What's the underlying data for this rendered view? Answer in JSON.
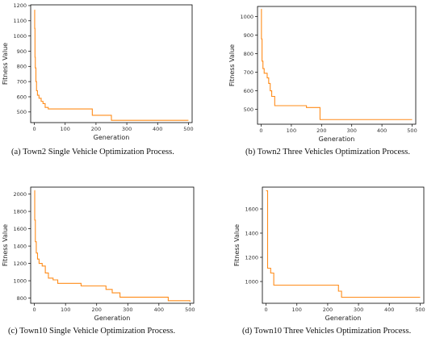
{
  "captions": [
    "(a)  Town2 Single Vehicle Optimization Process.",
    "(b)  Town2 Three Vehicles Optimization Process.",
    "(c)  Town10 Single Vehicle Optimization Process.",
    "(d)  Town10 Three Vehicles Optimization Process."
  ],
  "colors": {
    "line": "#ff8c1a",
    "axis": "#000000"
  },
  "chart_data": [
    {
      "type": "line",
      "title": "",
      "xlabel": "Generation",
      "ylabel": "Fitness Value",
      "xlim": [
        -12,
        512
      ],
      "ylim": [
        430,
        1205
      ],
      "xticks": [
        0,
        100,
        200,
        300,
        400,
        500
      ],
      "yticks": [
        500,
        600,
        700,
        800,
        900,
        1000,
        1100,
        1200
      ],
      "series": [
        {
          "steps": [
            [
              0,
              1170
            ],
            [
              1,
              1050
            ],
            [
              2,
              860
            ],
            [
              3,
              790
            ],
            [
              5,
              700
            ],
            [
              7,
              640
            ],
            [
              10,
              610
            ],
            [
              15,
              590
            ],
            [
              22,
              570
            ],
            [
              28,
              555
            ],
            [
              35,
              530
            ],
            [
              45,
              520
            ],
            [
              188,
              478
            ],
            [
              250,
              445
            ],
            [
              500,
              445
            ]
          ]
        }
      ]
    },
    {
      "type": "line",
      "title": "",
      "xlabel": "Generation",
      "ylabel": "Fitness Value",
      "xlim": [
        -12,
        512
      ],
      "ylim": [
        420,
        1055
      ],
      "xticks": [
        0,
        100,
        200,
        300,
        400,
        500
      ],
      "yticks": [
        500,
        600,
        700,
        800,
        900,
        1000
      ],
      "series": [
        {
          "steps": [
            [
              0,
              1040
            ],
            [
              1,
              880
            ],
            [
              3,
              760
            ],
            [
              6,
              720
            ],
            [
              10,
              695
            ],
            [
              20,
              670
            ],
            [
              25,
              640
            ],
            [
              30,
              600
            ],
            [
              35,
              570
            ],
            [
              45,
              520
            ],
            [
              150,
              510
            ],
            [
              195,
              445
            ],
            [
              500,
              445
            ]
          ]
        }
      ]
    },
    {
      "type": "line",
      "title": "",
      "xlabel": "Generation",
      "ylabel": "Fitness Value",
      "xlim": [
        -12,
        512
      ],
      "ylim": [
        740,
        2080
      ],
      "xticks": [
        0,
        100,
        200,
        300,
        400,
        500
      ],
      "yticks": [
        800,
        1000,
        1200,
        1400,
        1600,
        1800,
        2000
      ],
      "series": [
        {
          "steps": [
            [
              0,
              2040
            ],
            [
              1,
              1700
            ],
            [
              3,
              1450
            ],
            [
              6,
              1320
            ],
            [
              10,
              1250
            ],
            [
              15,
              1200
            ],
            [
              25,
              1170
            ],
            [
              35,
              1090
            ],
            [
              45,
              1030
            ],
            [
              60,
              1010
            ],
            [
              75,
              970
            ],
            [
              150,
              940
            ],
            [
              230,
              900
            ],
            [
              250,
              860
            ],
            [
              275,
              810
            ],
            [
              430,
              770
            ],
            [
              500,
              760
            ]
          ]
        }
      ]
    },
    {
      "type": "line",
      "title": "",
      "xlabel": "Generation",
      "ylabel": "Fitness Value",
      "xlim": [
        -12,
        512
      ],
      "ylim": [
        820,
        1780
      ],
      "xticks": [
        0,
        100,
        200,
        300,
        400,
        500
      ],
      "yticks": [
        1000,
        1200,
        1400,
        1600
      ],
      "series": [
        {
          "steps": [
            [
              0,
              1750
            ],
            [
              5,
              1110
            ],
            [
              15,
              1070
            ],
            [
              25,
              970
            ],
            [
              235,
              920
            ],
            [
              245,
              870
            ],
            [
              500,
              870
            ]
          ]
        }
      ]
    }
  ]
}
